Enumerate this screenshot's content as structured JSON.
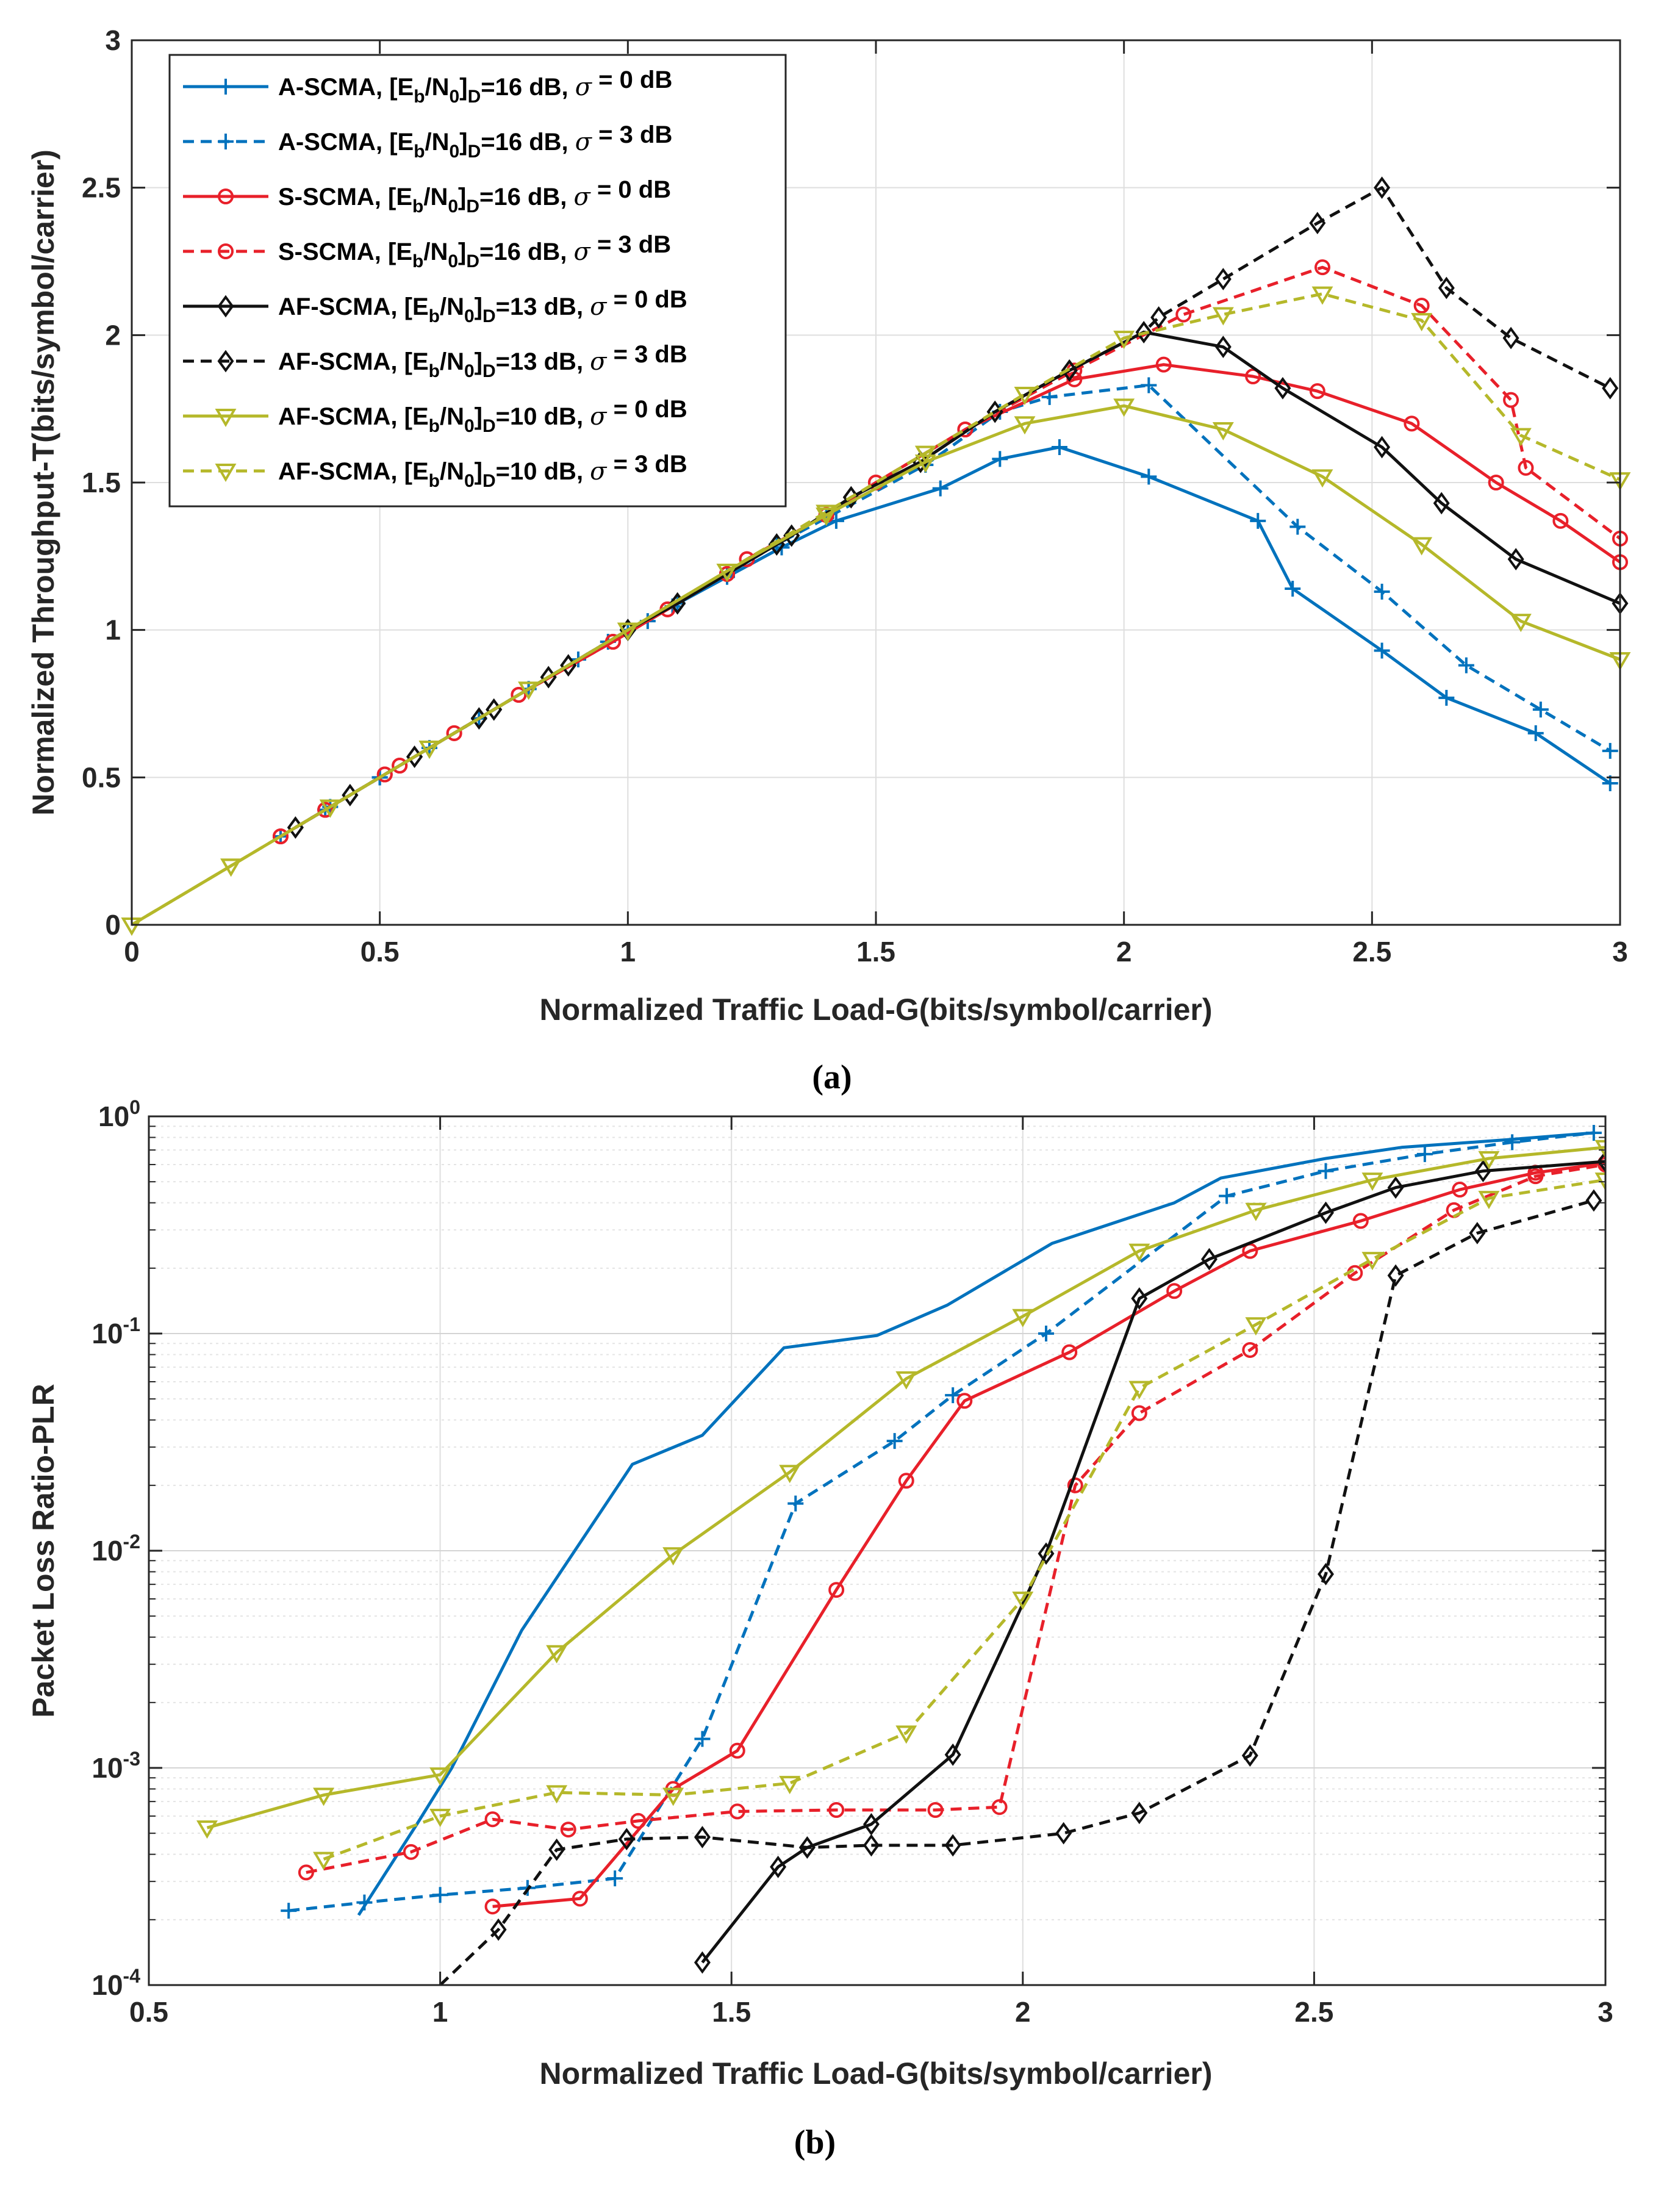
{
  "chart_data": [
    {
      "type": "line",
      "panel_label": "(a)",
      "xlabel": "Normalized Traffic Load-G(bits/symbol/carrier)",
      "ylabel": "Normalized Throughput-T(bits/symbol/carrier)",
      "xlim": [
        0,
        3
      ],
      "ylim": [
        0,
        3
      ],
      "xscale": "linear",
      "yscale": "linear",
      "xticks": [
        0,
        0.5,
        1,
        1.5,
        2,
        2.5,
        3
      ],
      "yticks": [
        0,
        0.5,
        1,
        1.5,
        2,
        2.5,
        3
      ],
      "xtick_labels": [
        "0",
        "0.5",
        "1",
        "1.5",
        "2",
        "2.5",
        "3"
      ],
      "ytick_labels": [
        "0",
        "0.5",
        "1",
        "1.5",
        "2",
        "2.5",
        "3"
      ],
      "grid": true,
      "legend_position": "top-left",
      "legend": [
        {
          "prefix": "A-SCMA, [E",
          "sub1": "b",
          "mid": "/N",
          "sub2": "0",
          "close": "]",
          "sub3": "D",
          "suffix": "=16 dB, ",
          "sym": "σ",
          "tail": " = 0 dB",
          "color": "#0072BD",
          "dash": "solid",
          "marker": "plus"
        },
        {
          "prefix": "A-SCMA, [E",
          "sub1": "b",
          "mid": "/N",
          "sub2": "0",
          "close": "]",
          "sub3": "D",
          "suffix": "=16 dB, ",
          "sym": "σ",
          "tail": " = 3 dB",
          "color": "#0072BD",
          "dash": "dashed",
          "marker": "plus"
        },
        {
          "prefix": "S-SCMA, [E",
          "sub1": "b",
          "mid": "/N",
          "sub2": "0",
          "close": "]",
          "sub3": "D",
          "suffix": "=16 dB, ",
          "sym": "σ",
          "tail": " = 0 dB",
          "color": "#E8202A",
          "dash": "solid",
          "marker": "circle"
        },
        {
          "prefix": "S-SCMA, [E",
          "sub1": "b",
          "mid": "/N",
          "sub2": "0",
          "close": "]",
          "sub3": "D",
          "suffix": "=16 dB, ",
          "sym": "σ",
          "tail": " = 3 dB",
          "color": "#E8202A",
          "dash": "dashed",
          "marker": "circle"
        },
        {
          "prefix": "AF-SCMA, [E",
          "sub1": "b",
          "mid": "/N",
          "sub2": "0",
          "close": "]",
          "sub3": "D",
          "suffix": "=13 dB, ",
          "sym": "σ",
          "tail": " = 0 dB",
          "color": "#111111",
          "dash": "solid",
          "marker": "diamond"
        },
        {
          "prefix": "AF-SCMA, [E",
          "sub1": "b",
          "mid": "/N",
          "sub2": "0",
          "close": "]",
          "sub3": "D",
          "suffix": "=13 dB, ",
          "sym": "σ",
          "tail": " = 3 dB",
          "color": "#111111",
          "dash": "dashed",
          "marker": "diamond"
        },
        {
          "prefix": "AF-SCMA, [E",
          "sub1": "b",
          "mid": "/N",
          "sub2": "0",
          "close": "]",
          "sub3": "D",
          "suffix": "=10 dB, ",
          "sym": "σ",
          "tail": " = 0 dB",
          "color": "#B5B82A",
          "dash": "solid",
          "marker": "triangle-down"
        },
        {
          "prefix": "AF-SCMA, [E",
          "sub1": "b",
          "mid": "/N",
          "sub2": "0",
          "close": "]",
          "sub3": "D",
          "suffix": "=10 dB, ",
          "sym": "σ",
          "tail": " = 3 dB",
          "color": "#B5B82A",
          "dash": "dashed",
          "marker": "triangle-down"
        }
      ],
      "series": [
        {
          "name": "A-SCMA 16 dB sigma 0",
          "color": "#0072BD",
          "dash": "solid",
          "marker": "plus",
          "x": [
            0.3,
            0.39,
            0.5,
            0.6,
            0.7,
            0.8,
            0.9,
            0.96,
            1.04,
            1.09,
            1.2,
            1.31,
            1.42,
            1.63,
            1.75,
            1.87,
            2.05,
            2.27,
            2.34,
            2.52,
            2.65,
            2.83,
            2.98
          ],
          "y": [
            0.3,
            0.39,
            0.5,
            0.6,
            0.7,
            0.8,
            0.9,
            0.96,
            1.03,
            1.08,
            1.18,
            1.28,
            1.37,
            1.48,
            1.58,
            1.62,
            1.52,
            1.37,
            1.14,
            0.93,
            0.77,
            0.65,
            0.48
          ]
        },
        {
          "name": "A-SCMA 16 dB sigma 3",
          "color": "#0072BD",
          "dash": "dashed",
          "marker": "plus",
          "x": [
            0.3,
            0.4,
            0.5,
            0.6,
            0.7,
            0.8,
            0.9,
            1.0,
            1.1,
            1.2,
            1.3,
            1.4,
            1.6,
            1.75,
            1.85,
            2.05,
            2.35,
            2.52,
            2.69,
            2.84,
            2.98
          ],
          "y": [
            0.3,
            0.4,
            0.5,
            0.6,
            0.7,
            0.8,
            0.9,
            1.0,
            1.09,
            1.19,
            1.29,
            1.38,
            1.56,
            1.74,
            1.79,
            1.83,
            1.35,
            1.13,
            0.88,
            0.73,
            0.59
          ]
        },
        {
          "name": "S-SCMA 16 dB sigma 0",
          "color": "#E8202A",
          "dash": "solid",
          "marker": "circle",
          "x": [
            0.3,
            0.39,
            0.51,
            0.54,
            0.65,
            0.78,
            0.97,
            1.08,
            1.2,
            1.24,
            1.4,
            1.5,
            1.68,
            1.9,
            2.08,
            2.26,
            2.39,
            2.58,
            2.75,
            2.88,
            3.0
          ],
          "y": [
            0.3,
            0.39,
            0.51,
            0.54,
            0.65,
            0.78,
            0.96,
            1.07,
            1.19,
            1.24,
            1.39,
            1.5,
            1.68,
            1.85,
            1.9,
            1.86,
            1.81,
            1.7,
            1.5,
            1.37,
            1.23
          ]
        },
        {
          "name": "S-SCMA 16 dB sigma 3",
          "color": "#E8202A",
          "dash": "dashed",
          "marker": "circle",
          "x": [
            0.3,
            0.39,
            0.51,
            0.54,
            0.65,
            0.78,
            0.97,
            1.08,
            1.2,
            1.24,
            1.4,
            1.5,
            1.68,
            1.9,
            2.12,
            2.4,
            2.6,
            2.78,
            2.81,
            3.0
          ],
          "y": [
            0.3,
            0.39,
            0.51,
            0.54,
            0.65,
            0.78,
            0.96,
            1.07,
            1.19,
            1.24,
            1.39,
            1.5,
            1.68,
            1.88,
            2.07,
            2.23,
            2.1,
            1.78,
            1.55,
            1.31
          ]
        },
        {
          "name": "AF-SCMA 13 dB sigma 0",
          "color": "#111111",
          "dash": "solid",
          "marker": "diamond",
          "x": [
            0.33,
            0.44,
            0.57,
            0.7,
            0.73,
            0.84,
            0.88,
            1.0,
            1.1,
            1.3,
            1.33,
            1.45,
            1.59,
            1.74,
            1.89,
            2.04,
            2.2,
            2.32,
            2.52,
            2.64,
            2.79,
            3.0
          ],
          "y": [
            0.33,
            0.44,
            0.57,
            0.7,
            0.73,
            0.84,
            0.88,
            1.0,
            1.09,
            1.29,
            1.32,
            1.45,
            1.57,
            1.74,
            1.88,
            2.01,
            1.96,
            1.82,
            1.62,
            1.43,
            1.24,
            1.09
          ]
        },
        {
          "name": "AF-SCMA 13 dB sigma 3",
          "color": "#111111",
          "dash": "dashed",
          "marker": "diamond",
          "x": [
            0.33,
            0.44,
            0.57,
            0.7,
            0.73,
            0.84,
            0.88,
            1.0,
            1.1,
            1.3,
            1.33,
            1.45,
            1.59,
            1.74,
            1.89,
            2.04,
            2.07,
            2.2,
            2.39,
            2.52,
            2.65,
            2.78,
            2.98
          ],
          "y": [
            0.33,
            0.44,
            0.57,
            0.7,
            0.73,
            0.84,
            0.88,
            1.0,
            1.09,
            1.29,
            1.32,
            1.45,
            1.57,
            1.74,
            1.88,
            2.01,
            2.06,
            2.19,
            2.38,
            2.5,
            2.16,
            1.99,
            1.82
          ]
        },
        {
          "name": "AF-SCMA 10 dB sigma 0",
          "color": "#B5B82A",
          "dash": "solid",
          "marker": "triangle-down",
          "x": [
            0.0,
            0.2,
            0.4,
            0.6,
            0.8,
            1.0,
            1.2,
            1.4,
            1.6,
            1.8,
            2.0,
            2.2,
            2.4,
            2.6,
            2.8,
            3.0
          ],
          "y": [
            0.0,
            0.2,
            0.4,
            0.6,
            0.8,
            1.0,
            1.2,
            1.39,
            1.57,
            1.7,
            1.76,
            1.68,
            1.52,
            1.29,
            1.03,
            0.9
          ]
        },
        {
          "name": "AF-SCMA 10 dB sigma 3",
          "color": "#B5B82A",
          "dash": "dashed",
          "marker": "triangle-down",
          "x": [
            0.0,
            0.2,
            0.4,
            0.6,
            0.8,
            1.0,
            1.2,
            1.4,
            1.6,
            1.8,
            2.0,
            2.2,
            2.4,
            2.6,
            2.8,
            3.0
          ],
          "y": [
            0.0,
            0.2,
            0.4,
            0.6,
            0.8,
            1.0,
            1.2,
            1.4,
            1.6,
            1.8,
            1.99,
            2.07,
            2.14,
            2.05,
            1.66,
            1.51
          ]
        }
      ]
    },
    {
      "type": "line",
      "panel_label": "(b)",
      "xlabel": "Normalized Traffic Load-G(bits/symbol/carrier)",
      "ylabel": "Packet Loss Ratio-PLR",
      "xlim": [
        0.5,
        3
      ],
      "ylim": [
        0.0001,
        1
      ],
      "xscale": "linear",
      "yscale": "log",
      "xticks": [
        0.5,
        1,
        1.5,
        2,
        2.5,
        3
      ],
      "xtick_labels": [
        "0.5",
        "1",
        "1.5",
        "2",
        "2.5",
        "3"
      ],
      "yticks": [
        0.0001,
        0.001,
        0.01,
        0.1,
        1
      ],
      "ytick_base": "10",
      "ytick_exponents": [
        "-4",
        "-3",
        "-2",
        "-1",
        "0"
      ],
      "grid": true,
      "minor_grid": true,
      "series": [
        {
          "name": "A-SCMA 16 dB sigma 0",
          "color": "#0072BD",
          "dash": "solid",
          "marker": "none",
          "x": [
            0.86,
            0.96,
            1.02,
            1.14,
            1.33,
            1.45,
            1.59,
            1.75,
            1.87,
            2.05,
            2.26,
            2.34,
            2.52,
            2.65,
            2.83,
            2.98
          ],
          "y": [
            0.00021,
            0.00055,
            0.001,
            0.0043,
            0.025,
            0.034,
            0.086,
            0.098,
            0.135,
            0.26,
            0.4,
            0.52,
            0.64,
            0.72,
            0.78,
            0.84
          ]
        },
        {
          "name": "A-SCMA 16 dB sigma 3",
          "color": "#0072BD",
          "dash": "dashed",
          "marker": "plus",
          "x": [
            0.74,
            0.87,
            1.0,
            1.15,
            1.3,
            1.45,
            1.61,
            1.78,
            1.88,
            2.04,
            2.35,
            2.52,
            2.69,
            2.84,
            2.98
          ],
          "y": [
            0.00022,
            0.00024,
            0.00026,
            0.00028,
            0.00031,
            0.00136,
            0.0165,
            0.032,
            0.052,
            0.1,
            0.43,
            0.56,
            0.67,
            0.76,
            0.84
          ]
        },
        {
          "name": "S-SCMA 16 dB sigma 0",
          "color": "#E8202A",
          "dash": "solid",
          "marker": "circle",
          "x": [
            1.09,
            1.24,
            1.4,
            1.51,
            1.68,
            1.8,
            1.9,
            2.08,
            2.26,
            2.39,
            2.58,
            2.75,
            2.88,
            3.0
          ],
          "y": [
            0.00023,
            0.00025,
            0.0008,
            0.0012,
            0.0066,
            0.021,
            0.049,
            0.082,
            0.157,
            0.24,
            0.33,
            0.46,
            0.55,
            0.61
          ]
        },
        {
          "name": "S-SCMA 16 dB sigma 3",
          "color": "#E8202A",
          "dash": "dashed",
          "marker": "circle",
          "x": [
            0.77,
            0.95,
            1.09,
            1.22,
            1.34,
            1.51,
            1.68,
            1.85,
            1.96,
            2.09,
            2.2,
            2.39,
            2.57,
            2.74,
            2.88,
            3.0
          ],
          "y": [
            0.00033,
            0.00041,
            0.00058,
            0.00052,
            0.00057,
            0.00063,
            0.00064,
            0.00064,
            0.00066,
            0.02,
            0.043,
            0.084,
            0.19,
            0.37,
            0.53,
            0.6
          ]
        },
        {
          "name": "AF-SCMA 13 dB sigma 0",
          "color": "#111111",
          "dash": "solid",
          "marker": "diamond",
          "x": [
            1.45,
            1.58,
            1.63,
            1.74,
            1.88,
            2.04,
            2.2,
            2.32,
            2.52,
            2.64,
            2.79,
            3.0
          ],
          "y": [
            0.000127,
            0.00035,
            0.00043,
            0.00055,
            0.00115,
            0.0097,
            0.145,
            0.22,
            0.36,
            0.47,
            0.56,
            0.62
          ]
        },
        {
          "name": "AF-SCMA 13 dB sigma 3",
          "color": "#111111",
          "dash": "dashed",
          "marker": "diamond",
          "x": [
            1.0,
            1.1,
            1.2,
            1.32,
            1.45,
            1.63,
            1.74,
            1.88,
            2.07,
            2.2,
            2.39,
            2.52,
            2.64,
            2.78,
            2.98
          ],
          "y": [
            0.0001,
            0.00018,
            0.00042,
            0.00047,
            0.00048,
            0.00043,
            0.00044,
            0.00044,
            0.0005,
            0.00062,
            0.00114,
            0.0078,
            0.185,
            0.29,
            0.41
          ]
        },
        {
          "name": "AF-SCMA 10 dB sigma 0",
          "color": "#B5B82A",
          "dash": "solid",
          "marker": "triangle-down",
          "x": [
            0.6,
            0.8,
            1.0,
            1.2,
            1.4,
            1.6,
            1.8,
            2.0,
            2.2,
            2.4,
            2.6,
            2.8,
            3.0
          ],
          "y": [
            0.00053,
            0.00075,
            0.00093,
            0.0034,
            0.0096,
            0.023,
            0.062,
            0.12,
            0.24,
            0.37,
            0.51,
            0.64,
            0.72
          ]
        },
        {
          "name": "AF-SCMA 10 dB sigma 3",
          "color": "#B5B82A",
          "dash": "dashed",
          "marker": "triangle-down",
          "x": [
            0.8,
            1.0,
            1.2,
            1.4,
            1.6,
            1.8,
            2.0,
            2.2,
            2.4,
            2.6,
            2.8,
            3.0
          ],
          "y": [
            0.00038,
            0.0006,
            0.00077,
            0.00075,
            0.00085,
            0.00145,
            0.006,
            0.056,
            0.11,
            0.22,
            0.42,
            0.51
          ]
        }
      ]
    }
  ]
}
